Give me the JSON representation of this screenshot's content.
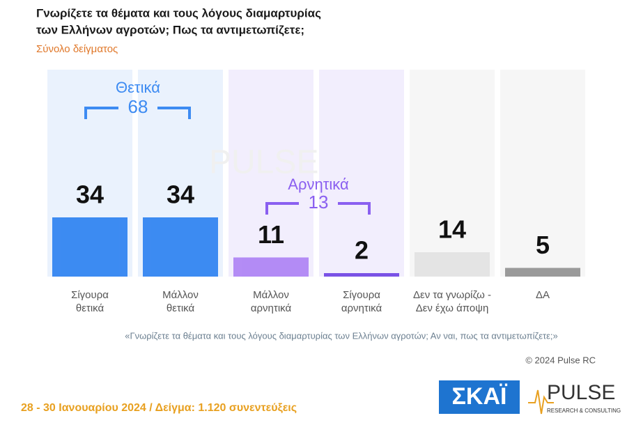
{
  "chart_data": {
    "type": "bar",
    "title": [
      "Γνωρίζετε τα θέματα και τους λόγους διαμαρτυρίας",
      "των Ελλήνων αγροτών; Πως τα αντιμετωπίζετε;"
    ],
    "subtitle": "Σύνολο δείγματος",
    "categories": [
      "Σίγουρα\nθετικά",
      "Μάλλον\nθετικά",
      "Μάλλον\nαρνητικά",
      "Σίγουρα\nαρνητικά",
      "Δεν τα γνωρίζω -\nΔεν έχω άποψη",
      "ΔΑ"
    ],
    "values": [
      34,
      34,
      11,
      2,
      14,
      5
    ],
    "colors": [
      "#3d8bf2",
      "#3d8bf2",
      "#b48cf5",
      "#7a52e6",
      "#e4e4e4",
      "#9a9a9a"
    ],
    "groups": [
      {
        "label": "Θετικά",
        "value": 68,
        "color": "#3d8bf2"
      },
      {
        "label": "Αρνητικά",
        "value": 13,
        "color": "#8a5ff0"
      }
    ],
    "note": "«Γνωρίζετε τα θέματα και τους λόγους διαμαρτυρίας των Ελλήνων αγροτών; Αν ναι, πως τα αντιμετωπίζετε;»",
    "copyright": "© 2024 Pulse RC",
    "footer": "28 - 30 Ιανουαρίου 2024  /  Δείγμα:  1.120 συνεντεύξεις",
    "logos": {
      "skai": "ΣΚΑΪ",
      "pulse": "PULSE",
      "pulse_sub": "RESEARCH & CONSULTING"
    }
  }
}
